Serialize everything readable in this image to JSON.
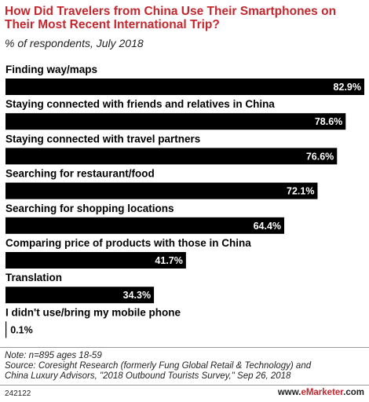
{
  "chart_data": {
    "type": "bar",
    "orientation": "horizontal",
    "title": "How Did Travelers from China Use Their Smartphones on Their Most Recent International Trip?",
    "subtitle": "% of respondents, July 2018",
    "categories": [
      "Finding way/maps",
      "Staying connected with friends and relatives in China",
      "Staying connected with travel partners",
      "Searching for restaurant/food",
      "Searching for shopping locations",
      "Comparing price of products with those in China",
      "Translation",
      "I didn't use/bring my mobile phone"
    ],
    "values": [
      82.9,
      78.6,
      76.6,
      72.1,
      64.4,
      41.7,
      34.3,
      0.1
    ],
    "value_labels": [
      "82.9%",
      "78.6%",
      "76.6%",
      "72.1%",
      "64.4%",
      "41.7%",
      "34.3%",
      "0.1%"
    ],
    "xlim": [
      0,
      82.9
    ],
    "bar_color": "#000000",
    "grid": false
  },
  "notes": {
    "line1": "Note: n=895 ages 18-59",
    "line2": "Source: Coresight Research (formerly Fung Global Retail & Technology) and",
    "line3": "China Luxury Advisors, \"2018 Outbound Tourists Survey,\" Sep 26, 2018"
  },
  "footer": {
    "id": "242122",
    "brand_prefix": "www.",
    "brand_name": "eMarketer",
    "brand_suffix": ".com"
  },
  "colors": {
    "title": "#c4272e",
    "bar": "#000000",
    "label_inside": "#ffffff",
    "label_outside": "#000000"
  }
}
